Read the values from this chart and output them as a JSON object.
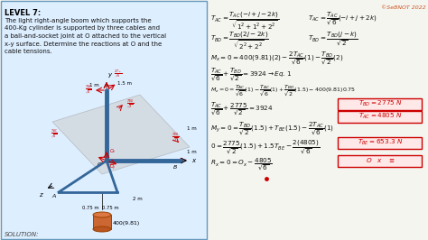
{
  "title": "LEVEL 7:",
  "watermark": "©SeBNOT 2022",
  "problem_text": [
    "The light right-angle boom which supports the",
    "400-Kg cylinder is supported by three cables and",
    "a ball-and-socket joint at O attached to the vertical",
    "x-y surface. Determine the reactions at O and the",
    "cable tensions."
  ],
  "bg_color": "#f5f5f0",
  "left_box_facecolor": "#ddeeff",
  "left_box_edgecolor": "#6699bb",
  "answer_box_facecolor": "#ffe8e8",
  "answer_box_edgecolor": "#cc0000",
  "watermark_color": "#cc5522",
  "math_color": "#111111",
  "answer_color": "#cc0000",
  "red_color": "#cc0000",
  "blue_color": "#336699",
  "gray_plane": "#c8c8c8",
  "solution_italic_color": "#333333"
}
